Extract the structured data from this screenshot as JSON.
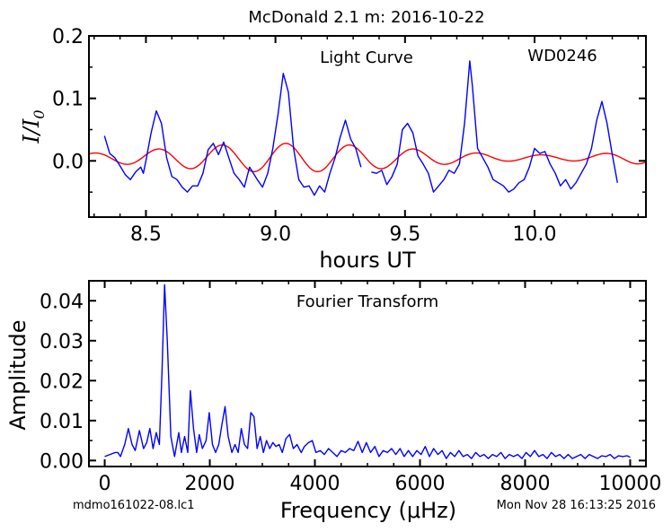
{
  "figure": {
    "title": "McDonald 2.1 m:  2016-10-22",
    "footer_left": "mdmo161022-08.lc1",
    "footer_right": "Mon Nov 28 16:13:25 2016"
  },
  "chart_data": [
    {
      "type": "line",
      "title": "Light Curve",
      "annotation": "WD0246",
      "xlabel": "hours UT",
      "ylabel": "I/I0",
      "xlim": [
        8.28,
        10.43
      ],
      "ylim": [
        -0.09,
        0.2
      ],
      "xticks": [
        8.5,
        9.0,
        9.5,
        10.0
      ],
      "xtick_labels": [
        "8.5",
        "9.0",
        "9.5",
        "10.0"
      ],
      "yticks": [
        0.0,
        0.1,
        0.2
      ],
      "ytick_labels": [
        "0.0",
        "0.1",
        "0.2"
      ],
      "grid": false,
      "colors": {
        "data": "#0000ff",
        "model": "#ff0000"
      },
      "series": [
        {
          "points": [
            [
              8.34,
              0.04
            ],
            [
              8.36,
              0.012
            ],
            [
              8.38,
              0.005
            ],
            [
              8.4,
              -0.008
            ],
            [
              8.42,
              -0.022
            ],
            [
              8.44,
              -0.03
            ],
            [
              8.46,
              -0.018
            ],
            [
              8.48,
              -0.01
            ],
            [
              8.49,
              -0.02
            ],
            [
              8.5,
              0.0
            ],
            [
              8.52,
              0.045
            ],
            [
              8.54,
              0.08
            ],
            [
              8.56,
              0.06
            ],
            [
              8.58,
              0.005
            ],
            [
              8.6,
              -0.025
            ],
            [
              8.62,
              -0.03
            ],
            [
              8.64,
              -0.042
            ],
            [
              8.66,
              -0.05
            ],
            [
              8.68,
              -0.04
            ],
            [
              8.7,
              -0.04
            ],
            [
              8.72,
              -0.02
            ],
            [
              8.74,
              0.018
            ],
            [
              8.76,
              0.028
            ],
            [
              8.78,
              0.01
            ],
            [
              8.8,
              0.03
            ],
            [
              8.82,
              0.005
            ],
            [
              8.84,
              -0.02
            ],
            [
              8.86,
              -0.03
            ],
            [
              8.88,
              -0.042
            ],
            [
              8.9,
              -0.01
            ],
            [
              8.93,
              -0.03
            ],
            [
              8.95,
              -0.042
            ],
            [
              8.97,
              -0.02
            ],
            [
              8.99,
              0.02
            ],
            [
              9.01,
              0.075
            ],
            [
              9.03,
              0.14
            ],
            [
              9.05,
              0.11
            ],
            [
              9.07,
              0.02
            ],
            [
              9.09,
              -0.03
            ],
            [
              9.11,
              -0.042
            ],
            [
              9.13,
              -0.04
            ],
            [
              9.15,
              -0.055
            ],
            [
              9.17,
              -0.04
            ],
            [
              9.19,
              -0.05
            ],
            [
              9.21,
              -0.02
            ],
            [
              9.23,
              0.005
            ],
            [
              9.25,
              0.038
            ],
            [
              9.27,
              0.065
            ],
            [
              9.29,
              0.035
            ],
            [
              9.31,
              0.02
            ],
            [
              9.33,
              -0.01
            ]
          ]
        },
        {
          "points": [
            [
              9.37,
              -0.018
            ],
            [
              9.39,
              -0.02
            ],
            [
              9.41,
              -0.015
            ],
            [
              9.43,
              -0.038
            ],
            [
              9.45,
              -0.025
            ],
            [
              9.47,
              -0.005
            ],
            [
              9.49,
              0.05
            ],
            [
              9.51,
              0.06
            ],
            [
              9.53,
              0.045
            ],
            [
              9.55,
              0.008
            ],
            [
              9.57,
              -0.005
            ],
            [
              9.59,
              -0.02
            ],
            [
              9.61,
              -0.05
            ],
            [
              9.63,
              -0.04
            ],
            [
              9.65,
              -0.03
            ],
            [
              9.67,
              -0.015
            ],
            [
              9.69,
              -0.02
            ],
            [
              9.71,
              -0.005
            ],
            [
              9.73,
              0.06
            ],
            [
              9.75,
              0.16
            ],
            [
              9.76,
              0.12
            ],
            [
              9.78,
              0.02
            ],
            [
              9.8,
              0.005
            ],
            [
              9.82,
              -0.01
            ],
            [
              9.84,
              -0.03
            ],
            [
              9.86,
              -0.035
            ],
            [
              9.88,
              -0.04
            ],
            [
              9.9,
              -0.05
            ],
            [
              9.92,
              -0.045
            ],
            [
              9.94,
              -0.035
            ],
            [
              9.96,
              -0.03
            ],
            [
              9.98,
              -0.01
            ],
            [
              10.0,
              0.02
            ],
            [
              10.02,
              0.012
            ],
            [
              10.04,
              0.015
            ],
            [
              10.06,
              -0.005
            ],
            [
              10.08,
              -0.02
            ],
            [
              10.1,
              -0.04
            ],
            [
              10.12,
              -0.03
            ],
            [
              10.14,
              -0.045
            ],
            [
              10.16,
              -0.035
            ],
            [
              10.18,
              -0.02
            ],
            [
              10.2,
              -0.005
            ],
            [
              10.22,
              0.02
            ],
            [
              10.24,
              0.065
            ],
            [
              10.26,
              0.095
            ],
            [
              10.28,
              0.06
            ],
            [
              10.3,
              0.01
            ],
            [
              10.32,
              -0.035
            ]
          ]
        }
      ]
    },
    {
      "type": "line",
      "title": "Fourier Transform",
      "xlabel": "Frequency (μHz)",
      "ylabel": "Amplitude",
      "xlim": [
        -300,
        10300
      ],
      "ylim": [
        -0.0015,
        0.045
      ],
      "xticks": [
        0,
        2000,
        4000,
        6000,
        8000,
        10000
      ],
      "xtick_labels": [
        "0",
        "2000",
        "4000",
        "6000",
        "8000",
        "10000"
      ],
      "yticks": [
        0.0,
        0.01,
        0.02,
        0.03,
        0.04
      ],
      "ytick_labels": [
        "0.00",
        "0.01",
        "0.02",
        "0.03",
        "0.04"
      ],
      "grid": false,
      "colors": {
        "data": "#0000ff"
      },
      "series": [
        {
          "points": [
            [
              0,
              0.001
            ],
            [
              100,
              0.0015
            ],
            [
              200,
              0.002
            ],
            [
              250,
              0.002
            ],
            [
              300,
              0.001
            ],
            [
              380,
              0.004
            ],
            [
              450,
              0.008
            ],
            [
              520,
              0.004
            ],
            [
              580,
              0.0025
            ],
            [
              660,
              0.0075
            ],
            [
              740,
              0.003
            ],
            [
              800,
              0.0045
            ],
            [
              860,
              0.008
            ],
            [
              920,
              0.003
            ],
            [
              980,
              0.007
            ],
            [
              1040,
              0.004
            ],
            [
              1090,
              0.022
            ],
            [
              1140,
              0.044
            ],
            [
              1190,
              0.03
            ],
            [
              1260,
              0.006
            ],
            [
              1330,
              0.001
            ],
            [
              1410,
              0.007
            ],
            [
              1460,
              0.002
            ],
            [
              1520,
              0.006
            ],
            [
              1580,
              0.002
            ],
            [
              1630,
              0.0175
            ],
            [
              1690,
              0.008
            ],
            [
              1750,
              0.002
            ],
            [
              1800,
              0.0065
            ],
            [
              1860,
              0.003
            ],
            [
              1930,
              0.005
            ],
            [
              1990,
              0.012
            ],
            [
              2050,
              0.004
            ],
            [
              2110,
              0.002
            ],
            [
              2170,
              0.004
            ],
            [
              2230,
              0.009
            ],
            [
              2290,
              0.0135
            ],
            [
              2350,
              0.006
            ],
            [
              2420,
              0.002
            ],
            [
              2480,
              0.004
            ],
            [
              2540,
              0.002
            ],
            [
              2600,
              0.008
            ],
            [
              2660,
              0.004
            ],
            [
              2720,
              0.003
            ],
            [
              2780,
              0.012
            ],
            [
              2840,
              0.011
            ],
            [
              2900,
              0.003
            ],
            [
              2960,
              0.006
            ],
            [
              3020,
              0.002
            ],
            [
              3080,
              0.005
            ],
            [
              3140,
              0.003
            ],
            [
              3200,
              0.0045
            ],
            [
              3260,
              0.0035
            ],
            [
              3320,
              0.004
            ],
            [
              3380,
              0.002
            ],
            [
              3450,
              0.0055
            ],
            [
              3520,
              0.0065
            ],
            [
              3590,
              0.003
            ],
            [
              3660,
              0.004
            ],
            [
              3740,
              0.002
            ],
            [
              3800,
              0.0035
            ],
            [
              3880,
              0.0045
            ],
            [
              3950,
              0.005
            ],
            [
              4020,
              0.002
            ],
            [
              4100,
              0.0025
            ],
            [
              4180,
              0.0015
            ],
            [
              4260,
              0.003
            ],
            [
              4340,
              0.002
            ],
            [
              4420,
              0.001
            ],
            [
              4500,
              0.0025
            ],
            [
              4580,
              0.002
            ],
            [
              4660,
              0.003
            ],
            [
              4740,
              0.0025
            ],
            [
              4820,
              0.0048
            ],
            [
              4900,
              0.002
            ],
            [
              4980,
              0.0045
            ],
            [
              5060,
              0.002
            ],
            [
              5140,
              0.0035
            ],
            [
              5220,
              0.001
            ],
            [
              5300,
              0.0025
            ],
            [
              5380,
              0.002
            ],
            [
              5460,
              0.003
            ],
            [
              5540,
              0.0015
            ],
            [
              5620,
              0.003
            ],
            [
              5700,
              0.001
            ],
            [
              5780,
              0.0025
            ],
            [
              5860,
              0.001
            ],
            [
              5940,
              0.0025
            ],
            [
              6020,
              0.0015
            ],
            [
              6100,
              0.0035
            ],
            [
              6180,
              0.001
            ],
            [
              6260,
              0.003
            ],
            [
              6340,
              0.0015
            ],
            [
              6420,
              0.0025
            ],
            [
              6500,
              0.0005
            ],
            [
              6580,
              0.002
            ],
            [
              6660,
              0.001
            ],
            [
              6740,
              0.0025
            ],
            [
              6820,
              0.001
            ],
            [
              6900,
              0.0015
            ],
            [
              6980,
              0.0005
            ],
            [
              7060,
              0.002
            ],
            [
              7140,
              0.001
            ],
            [
              7220,
              0.0015
            ],
            [
              7300,
              0.0005
            ],
            [
              7380,
              0.0015
            ],
            [
              7460,
              0.001
            ],
            [
              7540,
              0.002
            ],
            [
              7620,
              0.0005
            ],
            [
              7700,
              0.0015
            ],
            [
              7780,
              0.001
            ],
            [
              7860,
              0.0015
            ],
            [
              7940,
              0.0005
            ],
            [
              8020,
              0.002
            ],
            [
              8100,
              0.001
            ],
            [
              8180,
              0.0025
            ],
            [
              8260,
              0.001
            ],
            [
              8340,
              0.0015
            ],
            [
              8420,
              0.0005
            ],
            [
              8500,
              0.002
            ],
            [
              8580,
              0.001
            ],
            [
              8660,
              0.0015
            ],
            [
              8740,
              0.0005
            ],
            [
              8820,
              0.0015
            ],
            [
              8900,
              0.0005
            ],
            [
              8980,
              0.001
            ],
            [
              9060,
              0.0015
            ],
            [
              9140,
              0.0005
            ],
            [
              9220,
              0.0015
            ],
            [
              9300,
              0.001
            ],
            [
              9380,
              0.0005
            ],
            [
              9460,
              0.0012
            ],
            [
              9540,
              0.001
            ],
            [
              9620,
              0.0015
            ],
            [
              9700,
              0.0005
            ],
            [
              9780,
              0.0012
            ],
            [
              9860,
              0.001
            ],
            [
              9940,
              0.0012
            ],
            [
              10000,
              0.0008
            ]
          ]
        }
      ]
    }
  ]
}
